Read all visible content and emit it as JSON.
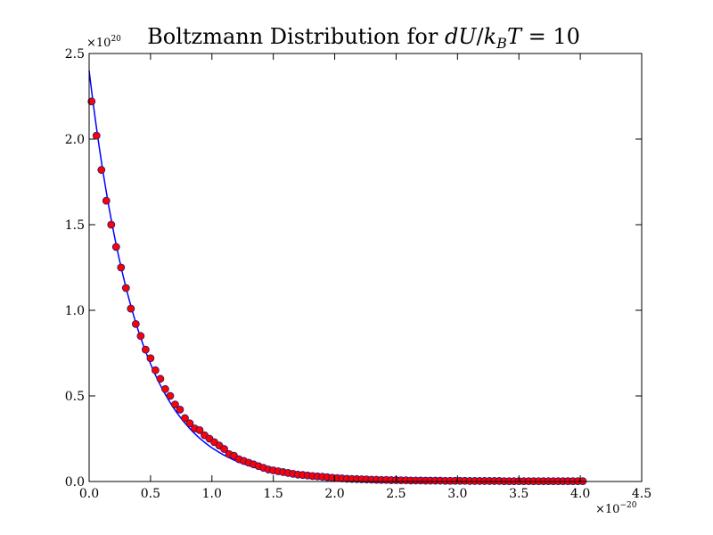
{
  "chart_data": {
    "type": "scatter",
    "title": {
      "prefix": "Boltzmann Distribution for ",
      "math_d": "dU",
      "math_slash": "/",
      "math_k": "k",
      "math_sub": "B",
      "math_T": "T",
      "math_eq": " = 10"
    },
    "x_tick_labels": [
      "0.0",
      "0.5",
      "1.0",
      "1.5",
      "2.0",
      "2.5",
      "3.0",
      "3.5",
      "4.0",
      "4.5"
    ],
    "y_tick_labels": [
      "0.0",
      "0.5",
      "1.0",
      "1.5",
      "2.0",
      "2.5"
    ],
    "x_multiplier": {
      "base": "×10",
      "exp": "−20"
    },
    "y_multiplier": {
      "base": "×10",
      "exp": "20"
    },
    "xlim": [
      0,
      4.5
    ],
    "ylim": [
      0,
      2.5
    ],
    "x_scale_note": "x values in units of 1e-20, y values in units of 1e20",
    "grid": false,
    "colors": {
      "curve": "#0000ff",
      "marker_fill": "#ff0000",
      "marker_edge": "#1a1a80"
    },
    "series": [
      {
        "kind": "markers",
        "x": [
          0.02,
          0.06,
          0.1,
          0.14,
          0.18,
          0.22,
          0.26,
          0.3,
          0.34,
          0.38,
          0.42,
          0.46,
          0.5,
          0.54,
          0.58,
          0.62,
          0.66,
          0.7,
          0.74,
          0.78,
          0.82,
          0.86,
          0.9,
          0.94,
          0.98,
          1.02,
          1.06,
          1.1,
          1.14,
          1.18,
          1.22,
          1.26,
          1.3,
          1.34,
          1.38,
          1.42,
          1.46,
          1.5,
          1.54,
          1.58,
          1.62,
          1.66,
          1.7,
          1.74,
          1.78,
          1.82,
          1.86,
          1.9,
          1.94,
          1.98,
          2.02,
          2.06,
          2.1,
          2.14,
          2.18,
          2.22,
          2.26,
          2.3,
          2.34,
          2.38,
          2.42,
          2.46,
          2.5,
          2.54,
          2.58,
          2.62,
          2.66,
          2.7,
          2.74,
          2.78,
          2.82,
          2.86,
          2.9,
          2.94,
          2.98,
          3.02,
          3.06,
          3.1,
          3.14,
          3.18,
          3.22,
          3.26,
          3.3,
          3.34,
          3.38,
          3.42,
          3.46,
          3.5,
          3.54,
          3.58,
          3.62,
          3.66,
          3.7,
          3.74,
          3.78,
          3.82,
          3.86,
          3.9,
          3.94,
          3.98,
          4.02
        ],
        "y": [
          2.22,
          2.02,
          1.82,
          1.64,
          1.5,
          1.37,
          1.25,
          1.13,
          1.01,
          0.92,
          0.85,
          0.77,
          0.72,
          0.65,
          0.6,
          0.54,
          0.5,
          0.45,
          0.42,
          0.37,
          0.34,
          0.31,
          0.3,
          0.27,
          0.25,
          0.23,
          0.21,
          0.19,
          0.16,
          0.15,
          0.13,
          0.12,
          0.11,
          0.1,
          0.09,
          0.08,
          0.07,
          0.065,
          0.06,
          0.055,
          0.05,
          0.045,
          0.04,
          0.038,
          0.035,
          0.032,
          0.03,
          0.028,
          0.025,
          0.022,
          0.02,
          0.018,
          0.016,
          0.015,
          0.014,
          0.013,
          0.012,
          0.011,
          0.01,
          0.009,
          0.009,
          0.008,
          0.008,
          0.007,
          0.007,
          0.006,
          0.006,
          0.006,
          0.005,
          0.005,
          0.005,
          0.005,
          0.004,
          0.004,
          0.004,
          0.004,
          0.004,
          0.003,
          0.003,
          0.003,
          0.003,
          0.003,
          0.003,
          0.003,
          0.002,
          0.002,
          0.002,
          0.002,
          0.002,
          0.002,
          0.002,
          0.002,
          0.002,
          0.002,
          0.002,
          0.002,
          0.002,
          0.002,
          0.002,
          0.002,
          0.002
        ]
      },
      {
        "kind": "curve",
        "function": "2.4*exp(-x/0.4)",
        "x_range": [
          0,
          4.0
        ]
      }
    ]
  }
}
